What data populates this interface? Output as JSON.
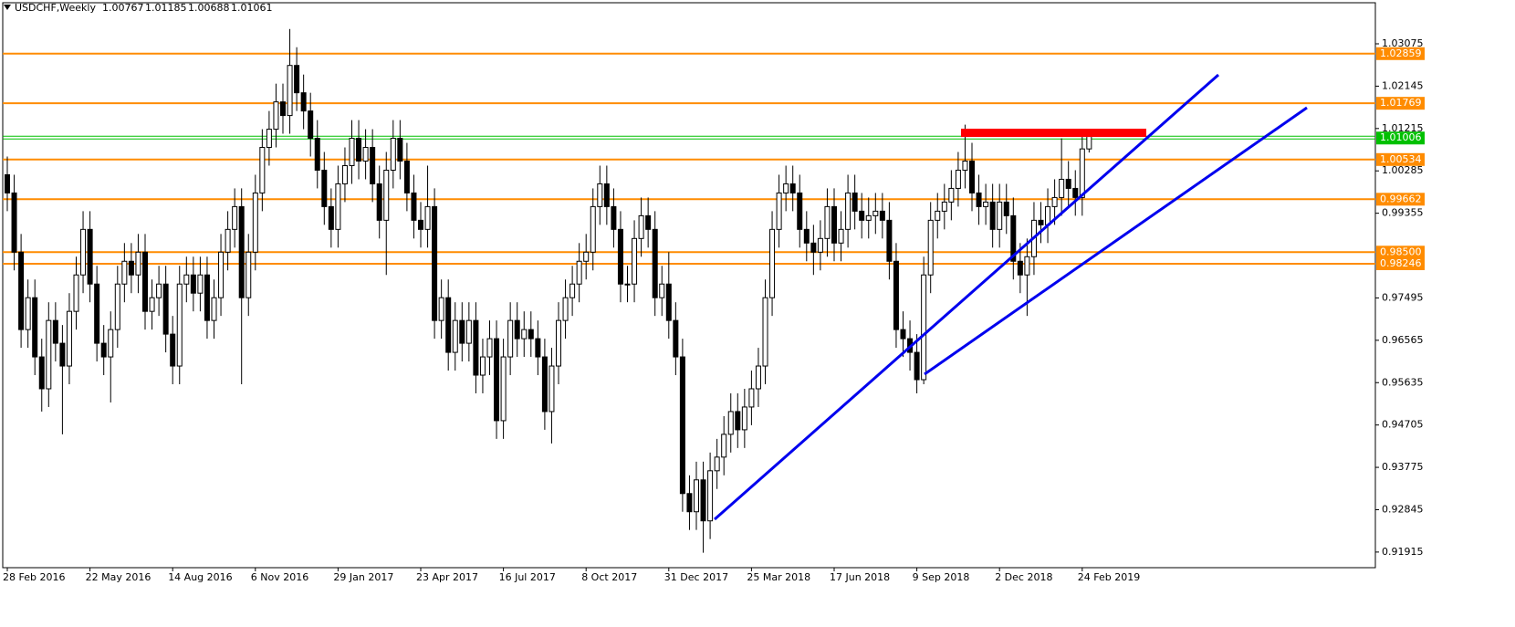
{
  "chart_data": {
    "type": "candlestick",
    "title": "USDCHF,Weekly",
    "categories": [
      "28 Feb 2016",
      null,
      null,
      null,
      null,
      null,
      null,
      null,
      null,
      null,
      null,
      null,
      "22 May 2016",
      null,
      null,
      null,
      null,
      null,
      null,
      null,
      null,
      null,
      null,
      null,
      "14 Aug 2016",
      null,
      null,
      null,
      null,
      null,
      null,
      null,
      null,
      null,
      null,
      null,
      "6 Nov 2016",
      null,
      null,
      null,
      null,
      null,
      null,
      null,
      null,
      null,
      null,
      null,
      "29 Jan 2017",
      null,
      null,
      null,
      null,
      null,
      null,
      null,
      null,
      null,
      null,
      null,
      "23 Apr 2017",
      null,
      null,
      null,
      null,
      null,
      null,
      null,
      null,
      null,
      null,
      null,
      "16 Jul 2017",
      null,
      null,
      null,
      null,
      null,
      null,
      null,
      null,
      null,
      null,
      null,
      "8 Oct 2017",
      null,
      null,
      null,
      null,
      null,
      null,
      null,
      null,
      null,
      null,
      null,
      "31 Dec 2017",
      null,
      null,
      null,
      null,
      null,
      null,
      null,
      null,
      null,
      null,
      null,
      "25 Mar 2018",
      null,
      null,
      null,
      null,
      null,
      null,
      null,
      null,
      null,
      null,
      null,
      "17 Jun 2018",
      null,
      null,
      null,
      null,
      null,
      null,
      null,
      null,
      null,
      null,
      null,
      "9 Sep 2018",
      null,
      null,
      null,
      null,
      null,
      null,
      null,
      null,
      null,
      null,
      null,
      "2 Dec 2018",
      null,
      null,
      null,
      null,
      null,
      null,
      null,
      null,
      null,
      null,
      null,
      "24 Feb 2019",
      null
    ],
    "ohlc": [
      [
        1.002,
        1.006,
        0.994,
        0.998
      ],
      [
        0.998,
        1.002,
        0.981,
        0.985
      ],
      [
        0.985,
        0.989,
        0.964,
        0.968
      ],
      [
        0.968,
        0.979,
        0.964,
        0.975
      ],
      [
        0.975,
        0.979,
        0.958,
        0.962
      ],
      [
        0.962,
        0.966,
        0.95,
        0.955
      ],
      [
        0.955,
        0.974,
        0.951,
        0.97
      ],
      [
        0.97,
        0.974,
        0.961,
        0.965
      ],
      [
        0.965,
        0.969,
        0.945,
        0.96
      ],
      [
        0.96,
        0.976,
        0.956,
        0.972
      ],
      [
        0.972,
        0.984,
        0.968,
        0.98
      ],
      [
        0.98,
        0.994,
        0.976,
        0.99
      ],
      [
        0.99,
        0.994,
        0.974,
        0.978
      ],
      [
        0.978,
        0.982,
        0.961,
        0.965
      ],
      [
        0.965,
        0.969,
        0.958,
        0.962
      ],
      [
        0.962,
        0.972,
        0.952,
        0.968
      ],
      [
        0.968,
        0.982,
        0.964,
        0.978
      ],
      [
        0.978,
        0.987,
        0.974,
        0.983
      ],
      [
        0.983,
        0.987,
        0.976,
        0.98
      ],
      [
        0.98,
        0.989,
        0.976,
        0.985
      ],
      [
        0.985,
        0.989,
        0.968,
        0.972
      ],
      [
        0.972,
        0.979,
        0.968,
        0.975
      ],
      [
        0.975,
        0.982,
        0.971,
        0.978
      ],
      [
        0.978,
        0.982,
        0.963,
        0.967
      ],
      [
        0.967,
        0.971,
        0.956,
        0.96
      ],
      [
        0.96,
        0.982,
        0.956,
        0.978
      ],
      [
        0.978,
        0.984,
        0.974,
        0.98
      ],
      [
        0.98,
        0.984,
        0.972,
        0.976
      ],
      [
        0.976,
        0.984,
        0.972,
        0.98
      ],
      [
        0.98,
        0.984,
        0.966,
        0.97
      ],
      [
        0.97,
        0.979,
        0.966,
        0.975
      ],
      [
        0.975,
        0.989,
        0.971,
        0.985
      ],
      [
        0.985,
        0.994,
        0.981,
        0.99
      ],
      [
        0.99,
        0.999,
        0.986,
        0.995
      ],
      [
        0.995,
        0.999,
        0.956,
        0.975
      ],
      [
        0.975,
        0.989,
        0.971,
        0.985
      ],
      [
        0.985,
        1.002,
        0.981,
        0.998
      ],
      [
        0.998,
        1.012,
        0.994,
        1.008
      ],
      [
        1.008,
        1.016,
        1.004,
        1.012
      ],
      [
        1.012,
        1.022,
        1.008,
        1.018
      ],
      [
        1.018,
        1.022,
        1.011,
        1.015
      ],
      [
        1.015,
        1.034,
        1.011,
        1.026
      ],
      [
        1.026,
        1.03,
        1.016,
        1.02
      ],
      [
        1.02,
        1.024,
        1.012,
        1.016
      ],
      [
        1.016,
        1.02,
        1.006,
        1.01
      ],
      [
        1.01,
        1.014,
        0.999,
        1.003
      ],
      [
        1.003,
        1.007,
        0.991,
        0.995
      ],
      [
        0.995,
        0.999,
        0.986,
        0.99
      ],
      [
        0.99,
        1.004,
        0.986,
        1.0
      ],
      [
        1.0,
        1.008,
        0.996,
        1.004
      ],
      [
        1.004,
        1.014,
        1.0,
        1.01
      ],
      [
        1.01,
        1.014,
        1.001,
        1.005
      ],
      [
        1.005,
        1.012,
        1.001,
        1.008
      ],
      [
        1.008,
        1.012,
        0.996,
        1.0
      ],
      [
        1.0,
        1.004,
        0.988,
        0.992
      ],
      [
        0.992,
        1.007,
        0.98,
        1.003
      ],
      [
        1.003,
        1.014,
        0.999,
        1.01
      ],
      [
        1.01,
        1.014,
        1.001,
        1.005
      ],
      [
        1.005,
        1.009,
        0.994,
        0.998
      ],
      [
        0.998,
        1.002,
        0.988,
        0.992
      ],
      [
        0.992,
        0.996,
        0.986,
        0.99
      ],
      [
        0.99,
        1.004,
        0.986,
        0.995
      ],
      [
        0.995,
        0.999,
        0.966,
        0.97
      ],
      [
        0.97,
        0.979,
        0.966,
        0.975
      ],
      [
        0.975,
        0.979,
        0.959,
        0.963
      ],
      [
        0.963,
        0.974,
        0.959,
        0.97
      ],
      [
        0.97,
        0.974,
        0.961,
        0.965
      ],
      [
        0.965,
        0.974,
        0.961,
        0.97
      ],
      [
        0.97,
        0.974,
        0.954,
        0.958
      ],
      [
        0.958,
        0.966,
        0.954,
        0.962
      ],
      [
        0.962,
        0.97,
        0.958,
        0.966
      ],
      [
        0.966,
        0.97,
        0.944,
        0.948
      ],
      [
        0.948,
        0.966,
        0.944,
        0.962
      ],
      [
        0.962,
        0.974,
        0.958,
        0.97
      ],
      [
        0.97,
        0.974,
        0.962,
        0.966
      ],
      [
        0.966,
        0.972,
        0.962,
        0.968
      ],
      [
        0.968,
        0.972,
        0.962,
        0.966
      ],
      [
        0.966,
        0.97,
        0.958,
        0.962
      ],
      [
        0.962,
        0.966,
        0.946,
        0.95
      ],
      [
        0.95,
        0.964,
        0.943,
        0.96
      ],
      [
        0.96,
        0.974,
        0.956,
        0.97
      ],
      [
        0.97,
        0.979,
        0.966,
        0.975
      ],
      [
        0.975,
        0.982,
        0.971,
        0.978
      ],
      [
        0.978,
        0.987,
        0.974,
        0.983
      ],
      [
        0.983,
        0.989,
        0.979,
        0.985
      ],
      [
        0.985,
        0.999,
        0.981,
        0.995
      ],
      [
        0.995,
        1.004,
        0.991,
        1.0
      ],
      [
        1.0,
        1.004,
        0.991,
        0.995
      ],
      [
        0.995,
        0.999,
        0.986,
        0.99
      ],
      [
        0.99,
        0.994,
        0.974,
        0.978
      ],
      [
        0.978,
        0.982,
        0.974,
        0.978
      ],
      [
        0.978,
        0.992,
        0.974,
        0.988
      ],
      [
        0.988,
        0.997,
        0.984,
        0.993
      ],
      [
        0.993,
        0.997,
        0.986,
        0.99
      ],
      [
        0.99,
        0.994,
        0.971,
        0.975
      ],
      [
        0.975,
        0.982,
        0.971,
        0.978
      ],
      [
        0.978,
        0.985,
        0.966,
        0.97
      ],
      [
        0.97,
        0.974,
        0.958,
        0.962
      ],
      [
        0.962,
        0.966,
        0.928,
        0.932
      ],
      [
        0.932,
        0.936,
        0.924,
        0.928
      ],
      [
        0.928,
        0.939,
        0.924,
        0.935
      ],
      [
        0.935,
        0.939,
        0.919,
        0.926
      ],
      [
        0.926,
        0.941,
        0.922,
        0.937
      ],
      [
        0.937,
        0.944,
        0.933,
        0.94
      ],
      [
        0.94,
        0.949,
        0.936,
        0.945
      ],
      [
        0.945,
        0.954,
        0.941,
        0.95
      ],
      [
        0.95,
        0.954,
        0.942,
        0.946
      ],
      [
        0.946,
        0.955,
        0.942,
        0.951
      ],
      [
        0.951,
        0.959,
        0.947,
        0.955
      ],
      [
        0.955,
        0.964,
        0.951,
        0.96
      ],
      [
        0.96,
        0.979,
        0.956,
        0.975
      ],
      [
        0.975,
        0.994,
        0.971,
        0.99
      ],
      [
        0.99,
        1.002,
        0.986,
        0.998
      ],
      [
        0.998,
        1.004,
        0.994,
        1.0
      ],
      [
        1.0,
        1.004,
        0.994,
        0.998
      ],
      [
        0.998,
        1.002,
        0.986,
        0.99
      ],
      [
        0.99,
        0.994,
        0.983,
        0.987
      ],
      [
        0.987,
        0.991,
        0.98,
        0.985
      ],
      [
        0.985,
        0.992,
        0.981,
        0.988
      ],
      [
        0.988,
        0.999,
        0.984,
        0.995
      ],
      [
        0.995,
        0.999,
        0.983,
        0.987
      ],
      [
        0.987,
        0.994,
        0.983,
        0.99
      ],
      [
        0.99,
        1.002,
        0.986,
        0.998
      ],
      [
        0.998,
        1.002,
        0.99,
        0.994
      ],
      [
        0.994,
        0.998,
        0.988,
        0.992
      ],
      [
        0.992,
        0.997,
        0.988,
        0.993
      ],
      [
        0.993,
        0.998,
        0.989,
        0.994
      ],
      [
        0.994,
        0.998,
        0.988,
        0.992
      ],
      [
        0.992,
        0.996,
        0.979,
        0.983
      ],
      [
        0.983,
        0.987,
        0.964,
        0.968
      ],
      [
        0.968,
        0.972,
        0.962,
        0.966
      ],
      [
        0.966,
        0.97,
        0.959,
        0.963
      ],
      [
        0.963,
        0.967,
        0.954,
        0.957
      ],
      [
        0.957,
        0.984,
        0.956,
        0.98
      ],
      [
        0.98,
        0.996,
        0.976,
        0.992
      ],
      [
        0.992,
        0.998,
        0.988,
        0.994
      ],
      [
        0.994,
        1.0,
        0.99,
        0.996
      ],
      [
        0.996,
        1.003,
        0.992,
        0.999
      ],
      [
        0.999,
        1.007,
        0.995,
        1.003
      ],
      [
        1.003,
        1.013,
        0.999,
        1.005
      ],
      [
        1.005,
        1.009,
        0.994,
        0.998
      ],
      [
        0.998,
        1.002,
        0.991,
        0.995
      ],
      [
        0.995,
        1.0,
        0.991,
        0.996
      ],
      [
        0.996,
        1.0,
        0.986,
        0.99
      ],
      [
        0.99,
        1.0,
        0.986,
        0.996
      ],
      [
        0.996,
        1.0,
        0.989,
        0.993
      ],
      [
        0.993,
        0.997,
        0.979,
        0.983
      ],
      [
        0.983,
        0.987,
        0.976,
        0.98
      ],
      [
        0.98,
        0.988,
        0.971,
        0.984
      ],
      [
        0.984,
        0.996,
        0.98,
        0.992
      ],
      [
        0.992,
        0.996,
        0.987,
        0.991
      ],
      [
        0.991,
        0.999,
        0.987,
        0.995
      ],
      [
        0.995,
        1.001,
        0.991,
        0.997
      ],
      [
        0.997,
        1.01,
        0.993,
        1.001
      ],
      [
        1.001,
        1.005,
        0.995,
        0.999
      ],
      [
        0.999,
        1.003,
        0.993,
        0.997
      ],
      [
        0.997,
        1.011,
        0.993,
        1.00767
      ],
      [
        1.00767,
        1.01185,
        1.00688,
        1.01061
      ]
    ],
    "ylim": [
      0.91572,
      1.04037
    ],
    "yticks": [
      1.03075,
      1.02145,
      1.01215,
      1.00285,
      0.99355,
      0.97495,
      0.96565,
      0.95635,
      0.94705,
      0.93775,
      0.92845,
      0.91915
    ],
    "levels": [
      1.02859,
      1.01769,
      1.00534,
      0.99662,
      {
        "value": 0.985,
        "label": "0.98500"
      },
      0.98246
    ],
    "level_color": "#ff8c00",
    "bid": 1.01006,
    "bid_color": "#00c000",
    "up_color": "#ffffff",
    "down_color": "#000000",
    "grid": false
  }
}
